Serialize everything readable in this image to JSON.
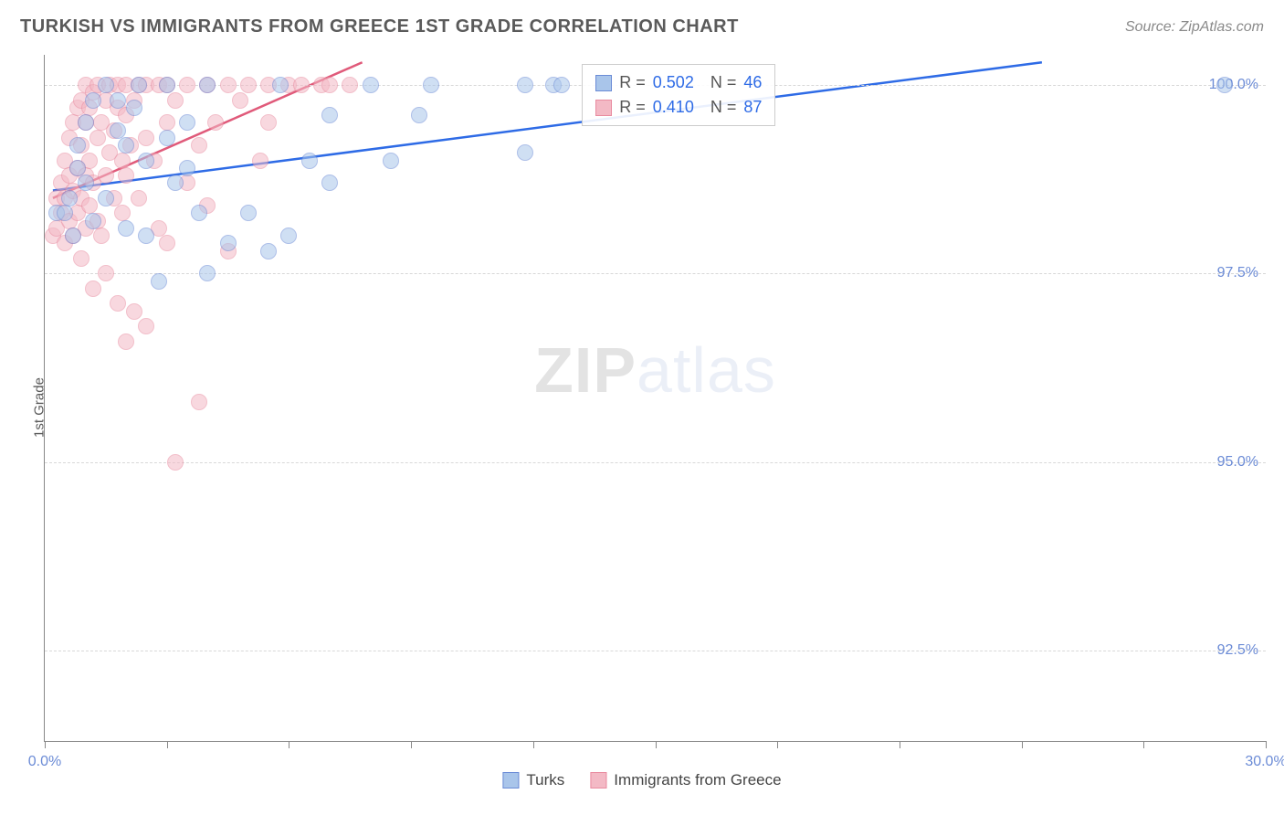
{
  "title": "TURKISH VS IMMIGRANTS FROM GREECE 1ST GRADE CORRELATION CHART",
  "source": "Source: ZipAtlas.com",
  "watermark": {
    "bold": "ZIP",
    "light": "atlas"
  },
  "ylabel": "1st Grade",
  "chart": {
    "type": "scatter",
    "background_color": "#ffffff",
    "grid_color": "#d8d8d8",
    "axis_color": "#888888",
    "label_color": "#6b8bd6",
    "marker_radius": 9,
    "marker_opacity": 0.55,
    "xlim": [
      0,
      30
    ],
    "ylim": [
      91.3,
      100.4
    ],
    "xticks": [
      0,
      3,
      6,
      9,
      12,
      15,
      18,
      21,
      24,
      27,
      30
    ],
    "xtick_labels": {
      "0": "0.0%",
      "30": "30.0%"
    },
    "yticks": [
      92.5,
      95.0,
      97.5,
      100.0
    ],
    "ytick_labels": [
      "92.5%",
      "95.0%",
      "97.5%",
      "100.0%"
    ],
    "series": [
      {
        "name": "Turks",
        "color_fill": "#a9c5ea",
        "color_stroke": "#6b8bd6",
        "trend_color": "#2e6be6",
        "R": "0.502",
        "N": "46",
        "trend": {
          "x1": 0.2,
          "y1": 98.6,
          "x2": 24.5,
          "y2": 100.3
        },
        "points": [
          [
            0.3,
            98.3
          ],
          [
            0.5,
            98.3
          ],
          [
            0.6,
            98.5
          ],
          [
            0.7,
            98.0
          ],
          [
            0.8,
            98.9
          ],
          [
            0.8,
            99.2
          ],
          [
            1.0,
            98.7
          ],
          [
            1.0,
            99.5
          ],
          [
            1.2,
            98.2
          ],
          [
            1.2,
            99.8
          ],
          [
            1.5,
            98.5
          ],
          [
            1.5,
            100.0
          ],
          [
            1.8,
            99.4
          ],
          [
            1.8,
            99.8
          ],
          [
            2.0,
            98.1
          ],
          [
            2.0,
            99.2
          ],
          [
            2.2,
            99.7
          ],
          [
            2.3,
            100.0
          ],
          [
            2.5,
            98.0
          ],
          [
            2.5,
            99.0
          ],
          [
            2.8,
            97.4
          ],
          [
            3.0,
            99.3
          ],
          [
            3.0,
            100.0
          ],
          [
            3.2,
            98.7
          ],
          [
            3.5,
            98.9
          ],
          [
            3.5,
            99.5
          ],
          [
            3.8,
            98.3
          ],
          [
            4.0,
            97.5
          ],
          [
            4.0,
            100.0
          ],
          [
            4.5,
            97.9
          ],
          [
            5.0,
            98.3
          ],
          [
            5.5,
            97.8
          ],
          [
            5.8,
            100.0
          ],
          [
            6.0,
            98.0
          ],
          [
            6.5,
            99.0
          ],
          [
            7.0,
            98.7
          ],
          [
            7.0,
            99.6
          ],
          [
            8.0,
            100.0
          ],
          [
            8.5,
            99.0
          ],
          [
            9.2,
            99.6
          ],
          [
            9.5,
            100.0
          ],
          [
            11.8,
            99.1
          ],
          [
            11.8,
            100.0
          ],
          [
            12.5,
            100.0
          ],
          [
            12.7,
            100.0
          ],
          [
            29.0,
            100.0
          ]
        ]
      },
      {
        "name": "Immigrants from Greece",
        "color_fill": "#f3b9c5",
        "color_stroke": "#e98ba0",
        "trend_color": "#e05a7a",
        "R": "0.410",
        "N": "87",
        "trend": {
          "x1": 0.2,
          "y1": 98.5,
          "x2": 7.8,
          "y2": 100.3
        },
        "points": [
          [
            0.2,
            98.0
          ],
          [
            0.3,
            98.1
          ],
          [
            0.3,
            98.5
          ],
          [
            0.4,
            98.3
          ],
          [
            0.4,
            98.7
          ],
          [
            0.5,
            97.9
          ],
          [
            0.5,
            98.5
          ],
          [
            0.5,
            99.0
          ],
          [
            0.6,
            98.2
          ],
          [
            0.6,
            98.8
          ],
          [
            0.6,
            99.3
          ],
          [
            0.7,
            98.0
          ],
          [
            0.7,
            98.6
          ],
          [
            0.7,
            99.5
          ],
          [
            0.8,
            98.3
          ],
          [
            0.8,
            98.9
          ],
          [
            0.8,
            99.7
          ],
          [
            0.9,
            97.7
          ],
          [
            0.9,
            98.5
          ],
          [
            0.9,
            99.2
          ],
          [
            0.9,
            99.8
          ],
          [
            1.0,
            98.1
          ],
          [
            1.0,
            98.8
          ],
          [
            1.0,
            99.5
          ],
          [
            1.0,
            100.0
          ],
          [
            1.1,
            98.4
          ],
          [
            1.1,
            99.0
          ],
          [
            1.1,
            99.7
          ],
          [
            1.2,
            97.3
          ],
          [
            1.2,
            98.7
          ],
          [
            1.2,
            99.9
          ],
          [
            1.3,
            98.2
          ],
          [
            1.3,
            99.3
          ],
          [
            1.3,
            100.0
          ],
          [
            1.4,
            98.0
          ],
          [
            1.4,
            99.5
          ],
          [
            1.5,
            97.5
          ],
          [
            1.5,
            98.8
          ],
          [
            1.5,
            99.8
          ],
          [
            1.6,
            99.1
          ],
          [
            1.6,
            100.0
          ],
          [
            1.7,
            98.5
          ],
          [
            1.7,
            99.4
          ],
          [
            1.8,
            97.1
          ],
          [
            1.8,
            99.7
          ],
          [
            1.8,
            100.0
          ],
          [
            1.9,
            98.3
          ],
          [
            1.9,
            99.0
          ],
          [
            2.0,
            96.6
          ],
          [
            2.0,
            98.8
          ],
          [
            2.0,
            99.6
          ],
          [
            2.0,
            100.0
          ],
          [
            2.1,
            99.2
          ],
          [
            2.2,
            97.0
          ],
          [
            2.2,
            99.8
          ],
          [
            2.3,
            98.5
          ],
          [
            2.3,
            100.0
          ],
          [
            2.5,
            96.8
          ],
          [
            2.5,
            99.3
          ],
          [
            2.5,
            100.0
          ],
          [
            2.7,
            99.0
          ],
          [
            2.8,
            98.1
          ],
          [
            2.8,
            100.0
          ],
          [
            3.0,
            97.9
          ],
          [
            3.0,
            99.5
          ],
          [
            3.0,
            100.0
          ],
          [
            3.2,
            95.0
          ],
          [
            3.2,
            99.8
          ],
          [
            3.5,
            98.7
          ],
          [
            3.5,
            100.0
          ],
          [
            3.8,
            95.8
          ],
          [
            3.8,
            99.2
          ],
          [
            4.0,
            98.4
          ],
          [
            4.0,
            100.0
          ],
          [
            4.2,
            99.5
          ],
          [
            4.5,
            97.8
          ],
          [
            4.5,
            100.0
          ],
          [
            4.8,
            99.8
          ],
          [
            5.0,
            100.0
          ],
          [
            5.3,
            99.0
          ],
          [
            5.5,
            99.5
          ],
          [
            5.5,
            100.0
          ],
          [
            6.0,
            100.0
          ],
          [
            6.3,
            100.0
          ],
          [
            6.8,
            100.0
          ],
          [
            7.0,
            100.0
          ],
          [
            7.5,
            100.0
          ]
        ]
      }
    ]
  },
  "legend_r_text": "R =",
  "legend_n_text": "N =",
  "bottom_legend": [
    {
      "label": "Turks",
      "fill": "#a9c5ea",
      "stroke": "#6b8bd6"
    },
    {
      "label": "Immigrants from Greece",
      "fill": "#f3b9c5",
      "stroke": "#e98ba0"
    }
  ]
}
